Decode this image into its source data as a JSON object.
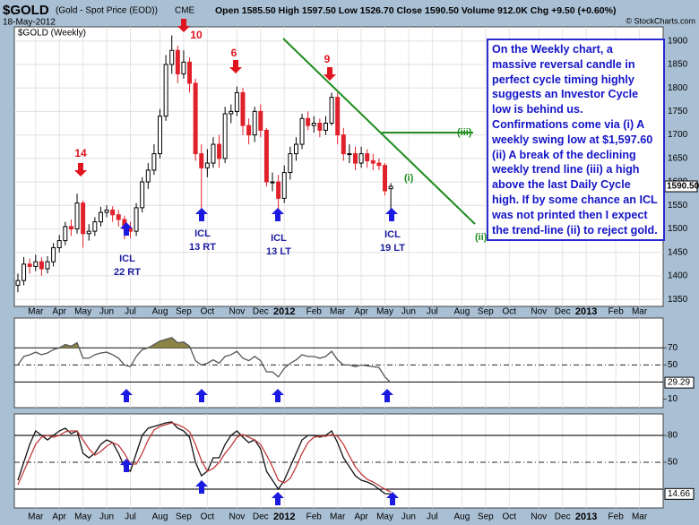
{
  "header": {
    "symbol": "$GOLD",
    "name": "(Gold - Spot Price (EOD))",
    "exchange": "CME",
    "date": "18-May-2012",
    "quote": "Open 1585.50  High 1597.50  Low 1526.70  Close 1590.50  Volume 912.0K  Chg +9.50 (+0.60%)",
    "credit": "© StockCharts.com"
  },
  "chart_data": [
    {
      "type": "candlestick",
      "legend": "$GOLD (Weekly)",
      "last_label": "1590.50",
      "open": [
        1380,
        1390,
        1425,
        1420,
        1430,
        1415,
        1430,
        1460,
        1475,
        1505,
        1500,
        1555,
        1490,
        1495,
        1515,
        1535,
        1540,
        1530,
        1520,
        1500,
        1495,
        1545,
        1600,
        1625,
        1660,
        1740,
        1850,
        1880,
        1830,
        1855,
        1810,
        1660,
        1630,
        1640,
        1680,
        1650,
        1745,
        1750,
        1790,
        1720,
        1700,
        1750,
        1710,
        1600,
        1600,
        1565,
        1620,
        1660,
        1680,
        1735,
        1720,
        1725,
        1710,
        1725,
        1780,
        1700,
        1660,
        1660,
        1640,
        1660,
        1645,
        1640,
        1635,
        1585.5
      ],
      "high": [
        1405,
        1440,
        1437,
        1445,
        1440,
        1442,
        1470,
        1487,
        1515,
        1520,
        1575,
        1560,
        1510,
        1525,
        1547,
        1550,
        1548,
        1540,
        1528,
        1515,
        1555,
        1610,
        1640,
        1680,
        1755,
        1870,
        1912,
        1890,
        1880,
        1865,
        1820,
        1680,
        1670,
        1695,
        1700,
        1760,
        1765,
        1803,
        1800,
        1735,
        1760,
        1765,
        1715,
        1620,
        1615,
        1635,
        1675,
        1695,
        1745,
        1750,
        1740,
        1735,
        1740,
        1790,
        1790,
        1715,
        1680,
        1675,
        1675,
        1670,
        1660,
        1650,
        1640,
        1597.5
      ],
      "low": [
        1365,
        1380,
        1405,
        1410,
        1400,
        1405,
        1420,
        1450,
        1465,
        1485,
        1490,
        1460,
        1475,
        1485,
        1505,
        1525,
        1515,
        1505,
        1478,
        1480,
        1485,
        1535,
        1585,
        1615,
        1650,
        1730,
        1830,
        1810,
        1820,
        1790,
        1645,
        1535,
        1610,
        1630,
        1630,
        1640,
        1725,
        1740,
        1700,
        1680,
        1685,
        1695,
        1590,
        1580,
        1523,
        1555,
        1605,
        1645,
        1670,
        1710,
        1705,
        1695,
        1700,
        1720,
        1680,
        1645,
        1640,
        1625,
        1630,
        1630,
        1625,
        1625,
        1571,
        1526.7
      ],
      "close": [
        1390,
        1425,
        1420,
        1430,
        1415,
        1430,
        1460,
        1475,
        1505,
        1500,
        1555,
        1490,
        1495,
        1515,
        1535,
        1540,
        1530,
        1520,
        1500,
        1495,
        1545,
        1600,
        1625,
        1660,
        1740,
        1850,
        1880,
        1830,
        1855,
        1810,
        1660,
        1630,
        1640,
        1680,
        1650,
        1745,
        1750,
        1790,
        1720,
        1700,
        1750,
        1710,
        1600,
        1600,
        1565,
        1620,
        1660,
        1680,
        1735,
        1720,
        1725,
        1710,
        1725,
        1780,
        1700,
        1660,
        1660,
        1640,
        1660,
        1645,
        1640,
        1635,
        1581,
        1590.5
      ],
      "xlim": [
        -0.6,
        109
      ],
      "ylim": [
        1335,
        1930
      ],
      "yticks": [
        1350,
        1400,
        1450,
        1500,
        1550,
        1600,
        1650,
        1700,
        1750,
        1800,
        1850,
        1900
      ],
      "xticks": [
        {
          "value": 3,
          "label": "Mar"
        },
        {
          "value": 7,
          "label": "Apr"
        },
        {
          "value": 11,
          "label": "May"
        },
        {
          "value": 15,
          "label": "Jun"
        },
        {
          "value": 19,
          "label": "Jul"
        },
        {
          "value": 24,
          "label": "Aug"
        },
        {
          "value": 28,
          "label": "Sep"
        },
        {
          "value": 32,
          "label": "Oct"
        },
        {
          "value": 37,
          "label": "Nov"
        },
        {
          "value": 41,
          "label": "Dec"
        },
        {
          "value": 45,
          "label": "2012"
        },
        {
          "value": 50,
          "label": "Feb"
        },
        {
          "value": 54,
          "label": "Mar"
        },
        {
          "value": 58,
          "label": "Apr"
        },
        {
          "value": 62,
          "label": "May"
        },
        {
          "value": 66,
          "label": "Jun"
        },
        {
          "value": 70,
          "label": "Jul"
        },
        {
          "value": 75,
          "label": "Aug"
        },
        {
          "value": 79,
          "label": "Sep"
        },
        {
          "value": 83,
          "label": "Oct"
        },
        {
          "value": 88,
          "label": "Nov"
        },
        {
          "value": 92,
          "label": "Dec"
        },
        {
          "value": 96,
          "label": "2013"
        },
        {
          "value": 101,
          "label": "Feb"
        },
        {
          "value": 105,
          "label": "Mar"
        }
      ],
      "grid": true,
      "up_color": "#ffffff",
      "down_color": "#e0202a",
      "cycle_tops": [
        "14",
        "10",
        "6",
        "9"
      ],
      "cycle_lows": [
        [
          "ICL",
          "22 RT"
        ],
        [
          "ICL",
          "13 RT"
        ],
        [
          "ICL",
          "13 LT"
        ],
        [
          "ICL",
          "19 LT"
        ]
      ],
      "trend_labels": [
        "(iii)",
        "(ii)",
        "(i)"
      ],
      "note": "On the Weekly chart, a massive reversal candle in perfect cycle timing highly suggests an Investor Cycle low is behind us. Confirmations come via (i) A weekly swing low at $1,597.60 (ii) A break of the declining weekly trend line (iii) a high above the last Daily Cycle high.  If by some chance an ICL was not printed then I expect the trend-line (ii) to reject gold."
    },
    {
      "type": "line",
      "xlim": [
        -0.6,
        109
      ],
      "ylim": [
        0,
        105
      ],
      "yticks": [
        10,
        50,
        70
      ],
      "ref_lines": [
        {
          "value": 70,
          "style": "solid"
        },
        {
          "value": 50,
          "style": "dashdot"
        },
        {
          "value": 30,
          "style": "solid"
        }
      ],
      "fill_above": 70,
      "fill_color": "#8c8446",
      "series": [
        {
          "color": "#555555",
          "values": [
            50,
            60,
            62,
            65,
            62,
            64,
            68,
            70,
            74,
            72,
            76,
            58,
            58,
            62,
            64,
            65,
            62,
            58,
            50,
            48,
            60,
            68,
            70,
            74,
            78,
            80,
            82,
            76,
            77,
            72,
            55,
            50,
            52,
            56,
            52,
            60,
            62,
            66,
            58,
            55,
            60,
            55,
            42,
            42,
            36,
            46,
            52,
            56,
            62,
            60,
            60,
            58,
            60,
            66,
            56,
            50,
            50,
            48,
            50,
            49,
            48,
            47,
            36,
            29.29
          ]
        }
      ]
    },
    {
      "type": "line",
      "xlim": [
        -0.6,
        109
      ],
      "ylim": [
        -1,
        104
      ],
      "yticks": [
        50,
        80
      ],
      "ref_lines": [
        {
          "value": 80,
          "style": "solid"
        },
        {
          "value": 50,
          "style": "dashdot"
        },
        {
          "value": 20,
          "style": "solid"
        }
      ],
      "xticks": [
        {
          "value": 3,
          "label": "Mar"
        },
        {
          "value": 7,
          "label": "Apr"
        },
        {
          "value": 11,
          "label": "May"
        },
        {
          "value": 15,
          "label": "Jun"
        },
        {
          "value": 19,
          "label": "Jul"
        },
        {
          "value": 24,
          "label": "Aug"
        },
        {
          "value": 28,
          "label": "Sep"
        },
        {
          "value": 32,
          "label": "Oct"
        },
        {
          "value": 37,
          "label": "Nov"
        },
        {
          "value": 41,
          "label": "Dec"
        },
        {
          "value": 45,
          "label": "2012"
        },
        {
          "value": 50,
          "label": "Feb"
        },
        {
          "value": 54,
          "label": "Mar"
        },
        {
          "value": 58,
          "label": "Apr"
        },
        {
          "value": 62,
          "label": "May"
        },
        {
          "value": 66,
          "label": "Jun"
        },
        {
          "value": 70,
          "label": "Jul"
        },
        {
          "value": 75,
          "label": "Aug"
        },
        {
          "value": 79,
          "label": "Sep"
        },
        {
          "value": 83,
          "label": "Oct"
        },
        {
          "value": 88,
          "label": "Nov"
        },
        {
          "value": 92,
          "label": "Dec"
        },
        {
          "value": 96,
          "label": "2013"
        },
        {
          "value": 101,
          "label": "Feb"
        },
        {
          "value": 105,
          "label": "Mar"
        }
      ],
      "series": [
        {
          "color": "#111111",
          "values": [
            30,
            50,
            70,
            85,
            80,
            75,
            80,
            85,
            88,
            82,
            85,
            60,
            55,
            60,
            70,
            75,
            72,
            60,
            45,
            40,
            60,
            80,
            88,
            90,
            92,
            94,
            95,
            88,
            85,
            78,
            50,
            35,
            40,
            55,
            55,
            70,
            80,
            85,
            78,
            72,
            75,
            65,
            40,
            30,
            20,
            30,
            45,
            60,
            75,
            80,
            80,
            78,
            80,
            85,
            72,
            55,
            45,
            35,
            30,
            28,
            25,
            20,
            15,
            14.66
          ]
        },
        {
          "color": "#c23a3a",
          "values": [
            25,
            40,
            55,
            70,
            78,
            80,
            78,
            80,
            84,
            85,
            85,
            75,
            65,
            58,
            62,
            68,
            72,
            69,
            60,
            48,
            48,
            60,
            75,
            86,
            90,
            92,
            94,
            92,
            89,
            84,
            70,
            52,
            40,
            43,
            50,
            60,
            68,
            78,
            81,
            78,
            75,
            70,
            58,
            45,
            30,
            27,
            32,
            45,
            60,
            72,
            78,
            79,
            79,
            81,
            79,
            70,
            57,
            45,
            37,
            31,
            28,
            24,
            20,
            17
          ]
        }
      ]
    }
  ]
}
